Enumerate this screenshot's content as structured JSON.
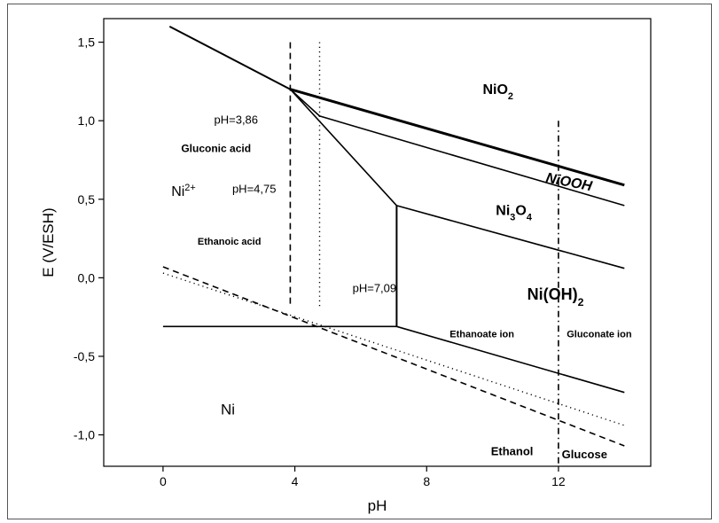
{
  "chart_data": {
    "type": "line",
    "title": "",
    "xlabel": "pH",
    "ylabel": "E (V/ESH)",
    "xlim": [
      -1.8,
      14.8
    ],
    "ylim": [
      -1.2,
      1.65
    ],
    "xticks": [
      0,
      4,
      8,
      12
    ],
    "xtick_labels": [
      "0",
      "4",
      "8",
      "12"
    ],
    "yticks": [
      1.5,
      1.0,
      0.5,
      0.0,
      -0.5,
      -1.0
    ],
    "ytick_labels": [
      "1,5",
      "1,0",
      "0,5",
      "0,0",
      "-0,5",
      "-1,0"
    ],
    "grid": false,
    "legend": "none",
    "series": [
      {
        "style": "solid",
        "width": 2,
        "points": [
          [
            0.2,
            1.6
          ],
          [
            3.86,
            1.2
          ]
        ]
      },
      {
        "style": "solid",
        "width": 3,
        "points": [
          [
            3.86,
            1.2
          ],
          [
            14,
            0.59
          ]
        ]
      },
      {
        "style": "solid",
        "width": 1.6,
        "points": [
          [
            3.86,
            1.2
          ],
          [
            4.75,
            1.03
          ],
          [
            14,
            0.46
          ]
        ]
      },
      {
        "style": "solid",
        "width": 1.6,
        "points": [
          [
            3.86,
            1.2
          ],
          [
            7.09,
            0.46
          ]
        ]
      },
      {
        "style": "solid",
        "width": 1.6,
        "points": [
          [
            7.09,
            0.46
          ],
          [
            14,
            0.06
          ]
        ]
      },
      {
        "style": "solid",
        "width": 2,
        "points": [
          [
            7.09,
            0.46
          ],
          [
            7.09,
            -0.31
          ]
        ]
      },
      {
        "style": "solid",
        "width": 1.6,
        "points": [
          [
            0,
            -0.31
          ],
          [
            7.09,
            -0.31
          ]
        ]
      },
      {
        "style": "solid",
        "width": 1.6,
        "points": [
          [
            7.09,
            -0.31
          ],
          [
            14,
            -0.73
          ]
        ]
      },
      {
        "style": "dashed",
        "width": 1.6,
        "points": [
          [
            0,
            0.07
          ],
          [
            14,
            -1.07
          ]
        ]
      },
      {
        "style": "dotted",
        "width": 1.4,
        "points": [
          [
            0,
            0.03
          ],
          [
            14,
            -0.94
          ]
        ]
      },
      {
        "style": "dashed",
        "width": 1.6,
        "points": [
          [
            3.86,
            1.5
          ],
          [
            3.86,
            -0.17
          ]
        ]
      },
      {
        "style": "dotted",
        "width": 1.4,
        "points": [
          [
            4.75,
            1.5
          ],
          [
            4.75,
            -0.2
          ]
        ]
      },
      {
        "style": "dashdot",
        "width": 1.6,
        "points": [
          [
            12,
            1.0
          ],
          [
            12,
            -1.2
          ]
        ]
      }
    ],
    "annotations": [
      {
        "id": "nio2",
        "x": 9.7,
        "y": 1.17,
        "parts": [
          [
            "NiO",
            ""
          ],
          [
            "2",
            "sub"
          ]
        ],
        "size": 16,
        "weight": "bold"
      },
      {
        "id": "niooh",
        "x": 11.6,
        "y": 0.61,
        "parts": [
          [
            "NiOOH",
            ""
          ]
        ],
        "size": 16,
        "weight": "bold",
        "italic": true,
        "rotate": 11
      },
      {
        "id": "ni3o4",
        "x": 10.1,
        "y": 0.4,
        "parts": [
          [
            "Ni",
            ""
          ],
          [
            "3",
            "sub"
          ],
          [
            "O",
            ""
          ],
          [
            "4",
            "sub"
          ]
        ],
        "size": 16,
        "weight": "bold"
      },
      {
        "id": "nioh2",
        "x": 11.05,
        "y": -0.14,
        "parts": [
          [
            "Ni(OH)",
            ""
          ],
          [
            "2",
            "sub"
          ]
        ],
        "size": 18,
        "weight": "bold"
      },
      {
        "id": "ni2plus",
        "x": 0.25,
        "y": 0.52,
        "parts": [
          [
            "Ni",
            ""
          ],
          [
            "2+",
            "sup"
          ]
        ],
        "size": 16,
        "weight": "normal"
      },
      {
        "id": "ni",
        "x": 1.75,
        "y": -0.87,
        "parts": [
          [
            "Ni",
            ""
          ]
        ],
        "size": 17,
        "weight": "normal"
      },
      {
        "id": "gluconic-acid",
        "x": 0.55,
        "y": 0.8,
        "parts": [
          [
            "Gluconic acid",
            ""
          ]
        ],
        "size": 12,
        "weight": "bold"
      },
      {
        "id": "ethanoic-acid",
        "x": 1.05,
        "y": 0.21,
        "parts": [
          [
            "Ethanoic acid",
            ""
          ]
        ],
        "size": 11,
        "weight": "bold"
      },
      {
        "id": "ph-386",
        "x": 1.55,
        "y": 0.98,
        "parts": [
          [
            "pH=3,86",
            ""
          ]
        ],
        "size": 13,
        "weight": "normal"
      },
      {
        "id": "ph-475",
        "x": 2.1,
        "y": 0.54,
        "parts": [
          [
            "pH=4,75",
            ""
          ]
        ],
        "size": 13,
        "weight": "normal"
      },
      {
        "id": "ph-709",
        "x": 5.75,
        "y": -0.09,
        "parts": [
          [
            "pH=7,09",
            ""
          ]
        ],
        "size": 13,
        "weight": "normal"
      },
      {
        "id": "ethanoate-ion",
        "x": 8.7,
        "y": -0.38,
        "parts": [
          [
            "Ethanoate ion",
            ""
          ]
        ],
        "size": 11,
        "weight": "bold"
      },
      {
        "id": "gluconate-ion",
        "x": 12.25,
        "y": -0.38,
        "parts": [
          [
            "Gluconate ion",
            ""
          ]
        ],
        "size": 11,
        "weight": "bold"
      },
      {
        "id": "ethanol",
        "x": 9.95,
        "y": -1.13,
        "parts": [
          [
            "Ethanol",
            ""
          ]
        ],
        "size": 13,
        "weight": "bold"
      },
      {
        "id": "glucose",
        "x": 12.1,
        "y": -1.15,
        "parts": [
          [
            "Glucose",
            ""
          ]
        ],
        "size": 13,
        "weight": "bold"
      }
    ]
  }
}
